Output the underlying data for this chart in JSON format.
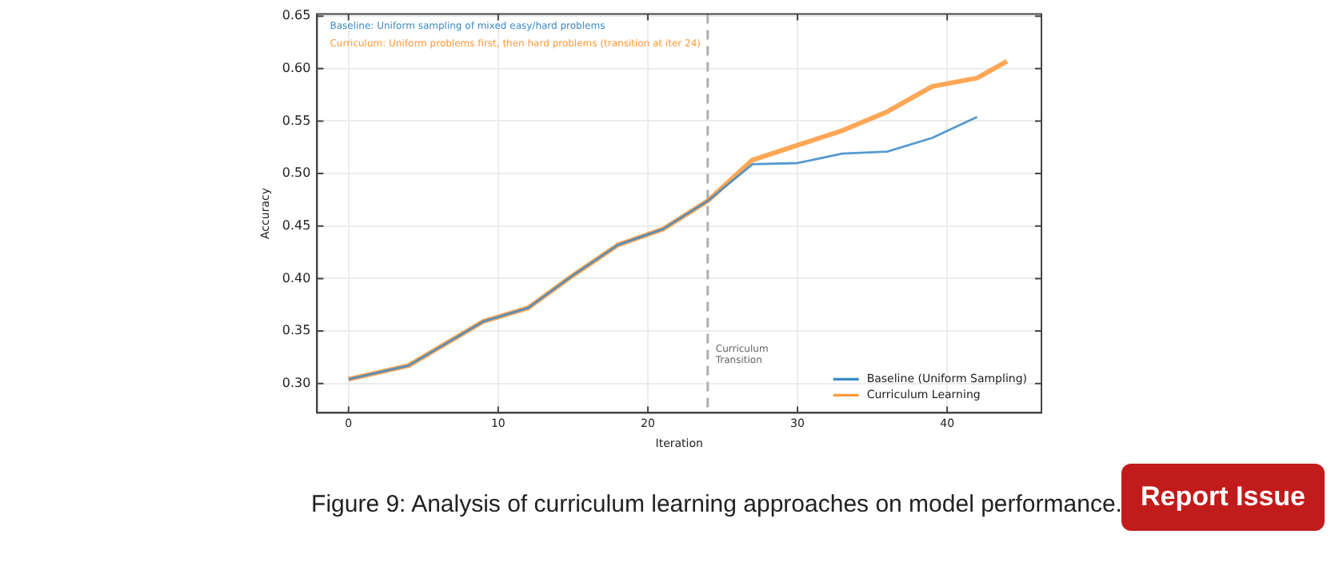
{
  "chart_data": {
    "type": "line",
    "xlabel": "Iteration",
    "ylabel": "Accuracy",
    "annotations": [
      "Baseline: Uniform sampling of mixed easy/hard problems",
      "Curriculum: Uniform problems first, then hard problems (transition at iter 24)",
      "Figure 9: Analysis of curriculum learning approaches on model performance.",
      "Report Issue"
    ],
    "series": [
      {
        "name": "Baseline (Uniform Sampling)",
        "color": "#3d8bc6",
        "x": [
          0,
          4,
          9,
          12,
          15,
          18,
          21,
          24,
          27,
          30,
          33,
          36,
          39,
          42
        ],
        "values": [
          0.304,
          0.317,
          0.359,
          0.372,
          0.403,
          0.432,
          0.447,
          0.474,
          0.509,
          0.51,
          0.519,
          0.521,
          0.534,
          0.554
        ]
      },
      {
        "name": "Curriculum Learning",
        "color": "#ff9a3c",
        "x": [
          0,
          4,
          9,
          12,
          15,
          18,
          21,
          24,
          27,
          30,
          33,
          36,
          39,
          42,
          44
        ],
        "values": [
          0.304,
          0.317,
          0.359,
          0.372,
          0.403,
          0.432,
          0.447,
          0.474,
          0.513,
          0.527,
          0.541,
          0.559,
          0.583,
          0.591,
          0.607
        ]
      }
    ],
    "ref_lines": [
      {
        "axis": "x",
        "value": 24,
        "label": "Curriculum Transition",
        "color": "#b0b0b0",
        "line_style": "dashed"
      }
    ],
    "xlim": [
      -2.1,
      46.3
    ],
    "xticks": [
      0,
      10,
      20,
      30,
      40
    ],
    "ylim": [
      0.272,
      0.652
    ],
    "yticks": [
      {
        "value": 0.3,
        "label": "0.30"
      },
      {
        "value": 0.35,
        "label": "0.35"
      },
      {
        "value": 0.4,
        "label": "0.40"
      },
      {
        "value": 0.45,
        "label": "0.45"
      },
      {
        "value": 0.5,
        "label": "0.50"
      },
      {
        "value": 0.55,
        "label": "0.55"
      },
      {
        "value": 0.6,
        "label": "0.60"
      },
      {
        "value": 0.65,
        "label": "0.65"
      }
    ],
    "grid": true,
    "legend": "bottom right",
    "marker": "none",
    "line_style": "solid"
  }
}
